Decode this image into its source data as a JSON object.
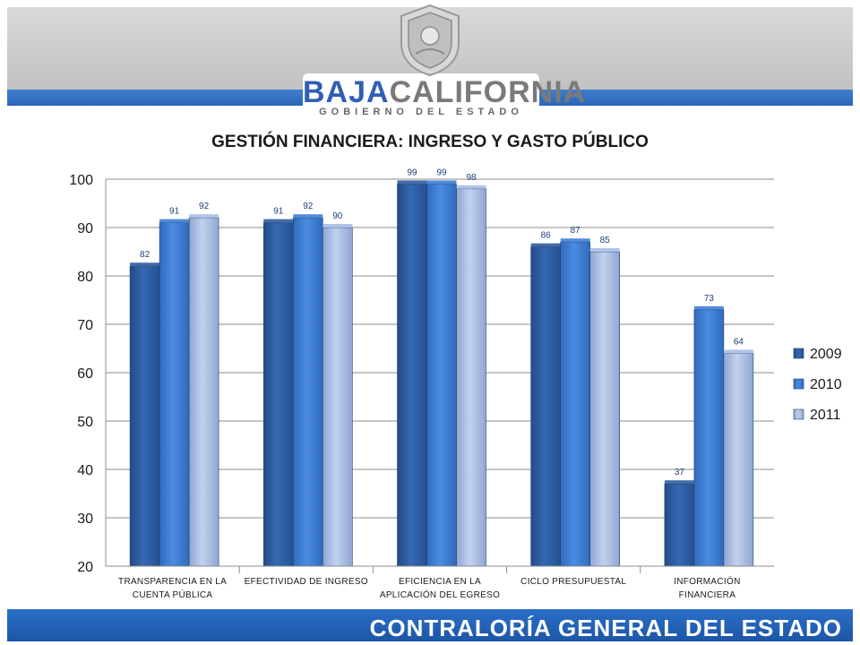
{
  "header": {
    "brand_part1": "BAJA",
    "brand_part2": "CALIFORNIA",
    "brand_subtitle": "GOBIERNO DEL ESTADO"
  },
  "footer": {
    "text": "CONTRALORÍA GENERAL DEL ESTADO"
  },
  "chart_data": {
    "type": "bar",
    "title": "GESTIÓN FINANCIERA: INGRESO Y GASTO PÚBLICO",
    "categories": [
      [
        "TRANSPARENCIA EN LA",
        "CUENTA PÚBLICA"
      ],
      [
        "EFECTIVIDAD DE INGRESO"
      ],
      [
        "EFICIENCIA EN LA",
        "APLICACIÓN DEL EGRESO"
      ],
      [
        "CICLO PRESUPUESTAL"
      ],
      [
        "INFORMACIÓN",
        "FINANCIERA"
      ]
    ],
    "series": [
      {
        "name": "2009",
        "values": [
          82,
          91,
          99,
          86,
          37
        ]
      },
      {
        "name": "2010",
        "values": [
          91,
          92,
          99,
          87,
          73
        ]
      },
      {
        "name": "2011",
        "values": [
          92,
          90,
          98,
          85,
          64
        ]
      }
    ],
    "colors": [
      "#2f5c9e",
      "#3f7fd4",
      "#a9bde4"
    ],
    "ylim": [
      20,
      100
    ],
    "yticks": [
      20,
      30,
      40,
      50,
      60,
      70,
      80,
      90,
      100
    ],
    "grid": true,
    "legend": "right",
    "data_labels": true
  }
}
